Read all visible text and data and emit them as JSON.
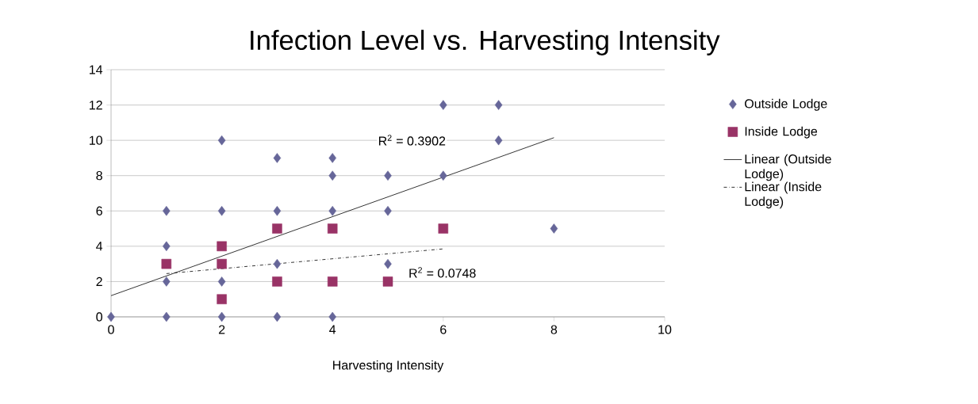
{
  "chart_data": {
    "type": "scatter",
    "title": "Infection Level vs. Harvesting Intensity",
    "xlabel": "Harvesting Intensity",
    "xlim": [
      0,
      10
    ],
    "xticks": [
      0,
      2,
      4,
      6,
      8,
      10
    ],
    "ylim": [
      0,
      14
    ],
    "yticks": [
      0,
      2,
      4,
      6,
      8,
      10,
      12,
      14
    ],
    "grid": "y",
    "legend": "right",
    "series": [
      {
        "name": "Outside Lodge",
        "marker": "diamond",
        "color": "#666699",
        "x": [
          0,
          1,
          1,
          1,
          1,
          2,
          2,
          2,
          2,
          3,
          3,
          3,
          3,
          4,
          4,
          4,
          4,
          5,
          5,
          5,
          6,
          6,
          7,
          7,
          8
        ],
        "values": [
          0,
          6,
          4,
          2,
          0,
          10,
          6,
          2,
          0,
          9,
          6,
          3,
          0,
          9,
          8,
          6,
          0,
          8,
          6,
          3,
          12,
          8,
          12,
          10,
          5
        ]
      },
      {
        "name": "Inside Lodge",
        "marker": "square",
        "color": "#993366",
        "x": [
          1,
          2,
          2,
          2,
          3,
          3,
          4,
          4,
          5,
          6
        ],
        "values": [
          3,
          4,
          3,
          1,
          5,
          2,
          5,
          2,
          2,
          5
        ]
      },
      {
        "name": "Linear (Outside Lodge)",
        "type": "line",
        "marker": "none",
        "line_style": "solid",
        "color": "#000000",
        "x": [
          0,
          8
        ],
        "values": [
          1.2,
          10.15
        ]
      },
      {
        "name": "Linear (Inside Lodge)",
        "type": "line",
        "marker": "none",
        "line_style": "dashed",
        "color": "#000000",
        "x": [
          1,
          6
        ],
        "values": [
          2.45,
          3.85
        ]
      }
    ],
    "annotations": [
      "R$^{2}$ = 0.3902",
      "R$^{2}$ = 0.0748"
    ]
  }
}
